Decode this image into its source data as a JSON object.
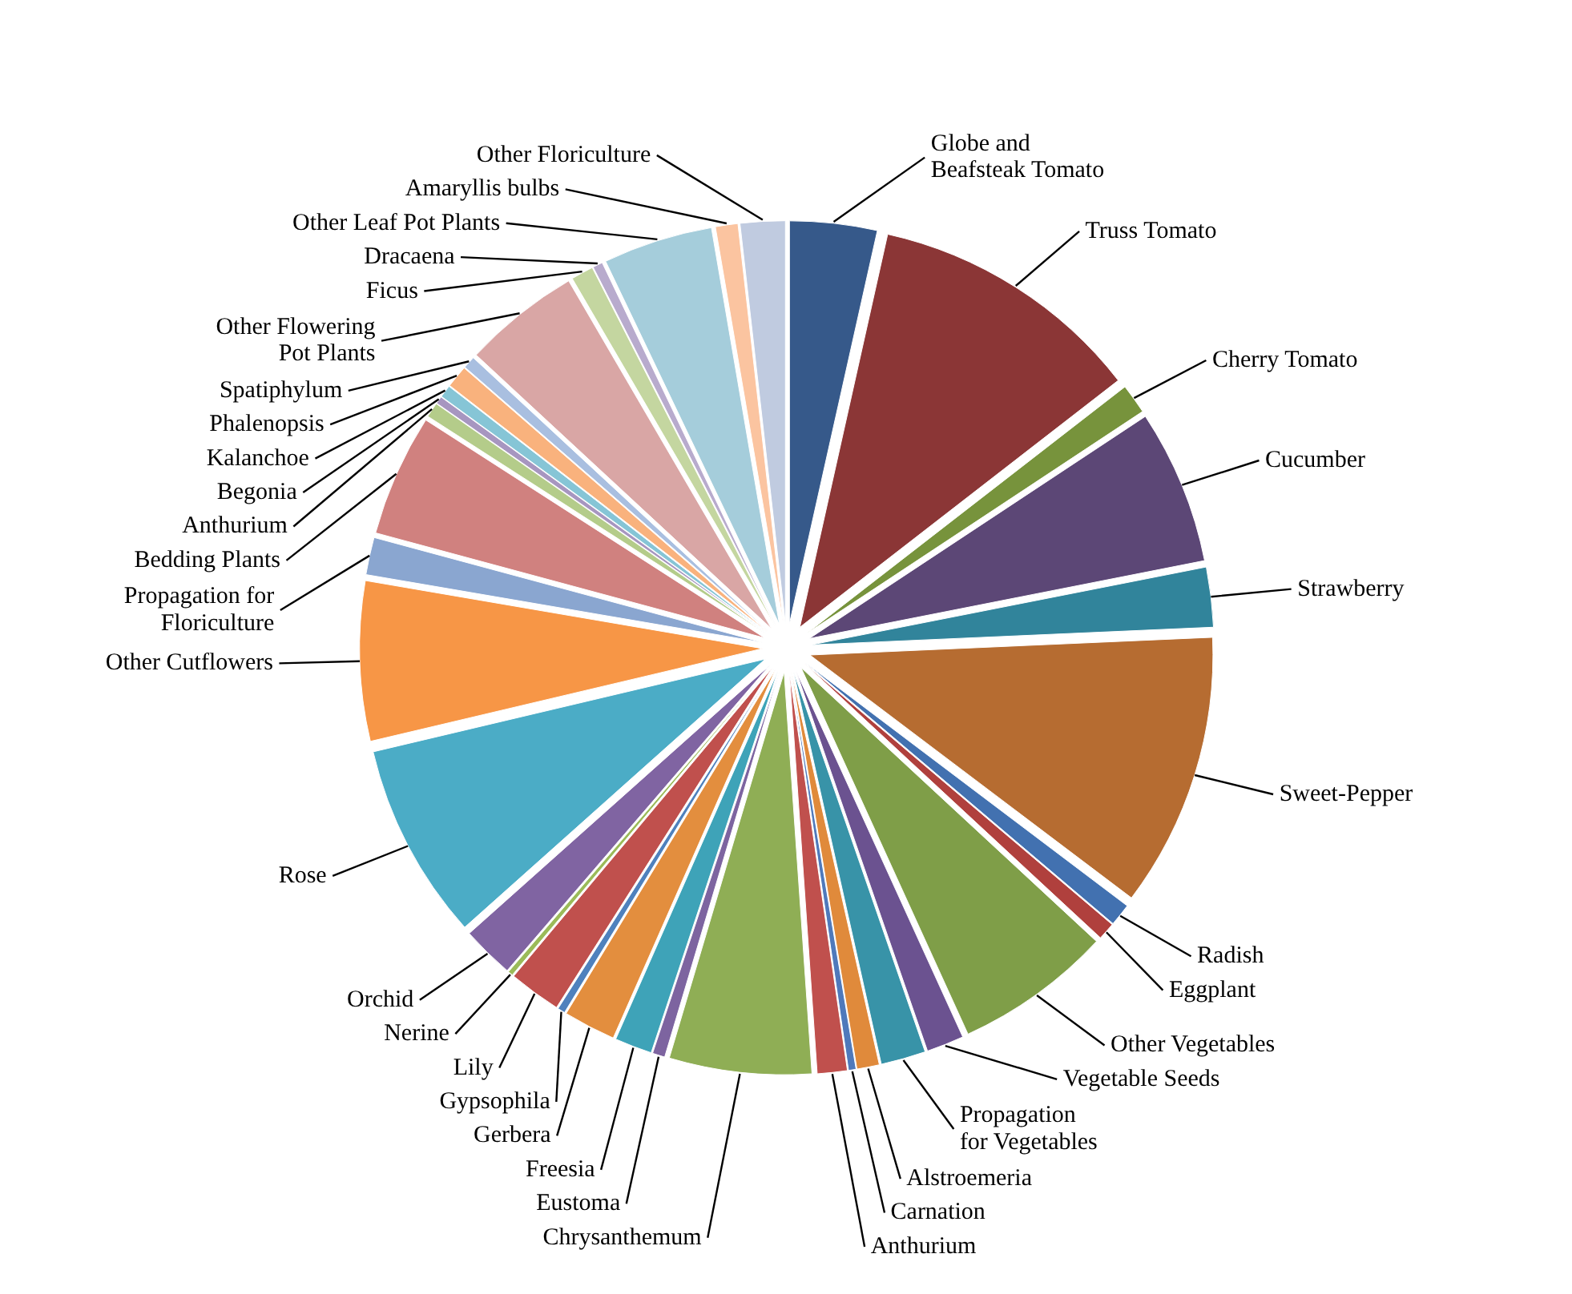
{
  "chart_data": {
    "type": "pie",
    "categories": [
      "Globe and Beafsteak Tomato",
      "Truss Tomato",
      "Cherry Tomato",
      "Cucumber",
      "Strawberry",
      "Sweet-Pepper",
      "Radish",
      "Eggplant",
      "Other Vegetables",
      "Vegetable Seeds",
      "Propagation for Vegetables",
      "Alstroemeria",
      "Carnation",
      "Anthurium",
      "Chrysanthemum",
      "Eustoma",
      "Freesia",
      "Gerbera",
      "Gypsophila",
      "Lily",
      "Nerine",
      "Orchid",
      "Rose",
      "Other Cutflowers",
      "Propagation for Floriculture",
      "Bedding Plants",
      "Anthurium",
      "Begonia",
      "Kalanchoe",
      "Phalenopsis",
      "Spatiphylum",
      "Other Flowering Pot Plants",
      "Ficus",
      "Dracaena",
      "Other Leaf Pot Plants",
      "Amaryllis bulbs",
      "Other Floriculture"
    ],
    "values": [
      3.5,
      11.0,
      1.2,
      6.2,
      2.4,
      11.0,
      0.9,
      0.7,
      6.3,
      1.5,
      1.8,
      0.9,
      0.3,
      1.2,
      5.7,
      0.5,
      1.5,
      2.1,
      0.3,
      2.1,
      0.2,
      2.1,
      7.9,
      6.4,
      1.5,
      4.9,
      0.6,
      0.3,
      0.5,
      0.9,
      0.5,
      4.7,
      0.9,
      0.4,
      4.4,
      0.9,
      1.8
    ],
    "colors": [
      "#36598a",
      "#8b3636",
      "#77933c",
      "#5c4776",
      "#31849b",
      "#b66c31",
      "#4271b0",
      "#b0403d",
      "#7f9e48",
      "#6b5290",
      "#3893a8",
      "#e08a3b",
      "#4f79bb",
      "#c0504d",
      "#8fae55",
      "#7d64a0",
      "#3ea3b8",
      "#e38e3e",
      "#4f81bd",
      "#c0504d",
      "#9bbb59",
      "#8064a2",
      "#4bacc6",
      "#f79646",
      "#8aa6d0",
      "#d0817f",
      "#b4cc8a",
      "#a796c0",
      "#86c5d6",
      "#f9b27d",
      "#a9bfe0",
      "#d9a6a5",
      "#c4d6a0",
      "#b8abcd",
      "#a5cddb",
      "#fbc4a0",
      "#c0cbe0"
    ]
  }
}
